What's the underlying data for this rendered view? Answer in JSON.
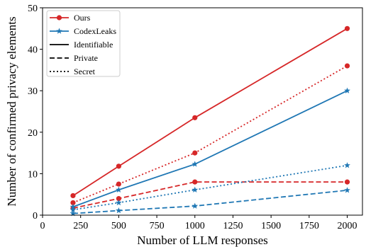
{
  "chart_data": {
    "type": "line",
    "xlabel": "Number of LLM responses",
    "ylabel": "Number of confirmed privacy elements",
    "xlim": [
      0,
      2100
    ],
    "ylim": [
      0,
      50
    ],
    "xticks": [
      0,
      250,
      500,
      750,
      1000,
      1250,
      1500,
      1750,
      2000
    ],
    "yticks": [
      0,
      10,
      20,
      30,
      40,
      50
    ],
    "grid": false,
    "legend_position": "top-left",
    "x": [
      200,
      500,
      1000,
      2000
    ],
    "legend": [
      {
        "label": "Ours",
        "kind": "method",
        "color": "#d62728",
        "marker": "circle"
      },
      {
        "label": "CodexLeaks",
        "kind": "method",
        "color": "#1f77b4",
        "marker": "star"
      },
      {
        "label": "Identifiable",
        "kind": "style",
        "dash": "solid"
      },
      {
        "label": "Private",
        "kind": "style",
        "dash": "dashed"
      },
      {
        "label": "Secret",
        "kind": "style",
        "dash": "dotted"
      }
    ],
    "series": [
      {
        "method": "Ours",
        "category": "Identifiable",
        "color": "#d62728",
        "marker": "circle",
        "dash": "solid",
        "values": [
          4.7,
          11.8,
          23.5,
          45
        ]
      },
      {
        "method": "Ours",
        "category": "Private",
        "color": "#d62728",
        "marker": "circle",
        "dash": "dashed",
        "values": [
          1.7,
          4,
          8,
          8
        ]
      },
      {
        "method": "Ours",
        "category": "Secret",
        "color": "#d62728",
        "marker": "circle",
        "dash": "dotted",
        "values": [
          3,
          7.5,
          15,
          36
        ]
      },
      {
        "method": "CodexLeaks",
        "category": "Identifiable",
        "color": "#1f77b4",
        "marker": "star",
        "dash": "solid",
        "values": [
          2,
          6.1,
          12.3,
          30
        ]
      },
      {
        "method": "CodexLeaks",
        "category": "Private",
        "color": "#1f77b4",
        "marker": "star",
        "dash": "dashed",
        "values": [
          0.4,
          1.1,
          2.2,
          6
        ]
      },
      {
        "method": "CodexLeaks",
        "category": "Secret",
        "color": "#1f77b4",
        "marker": "star",
        "dash": "dotted",
        "values": [
          1.3,
          3,
          6.1,
          12
        ]
      }
    ]
  }
}
